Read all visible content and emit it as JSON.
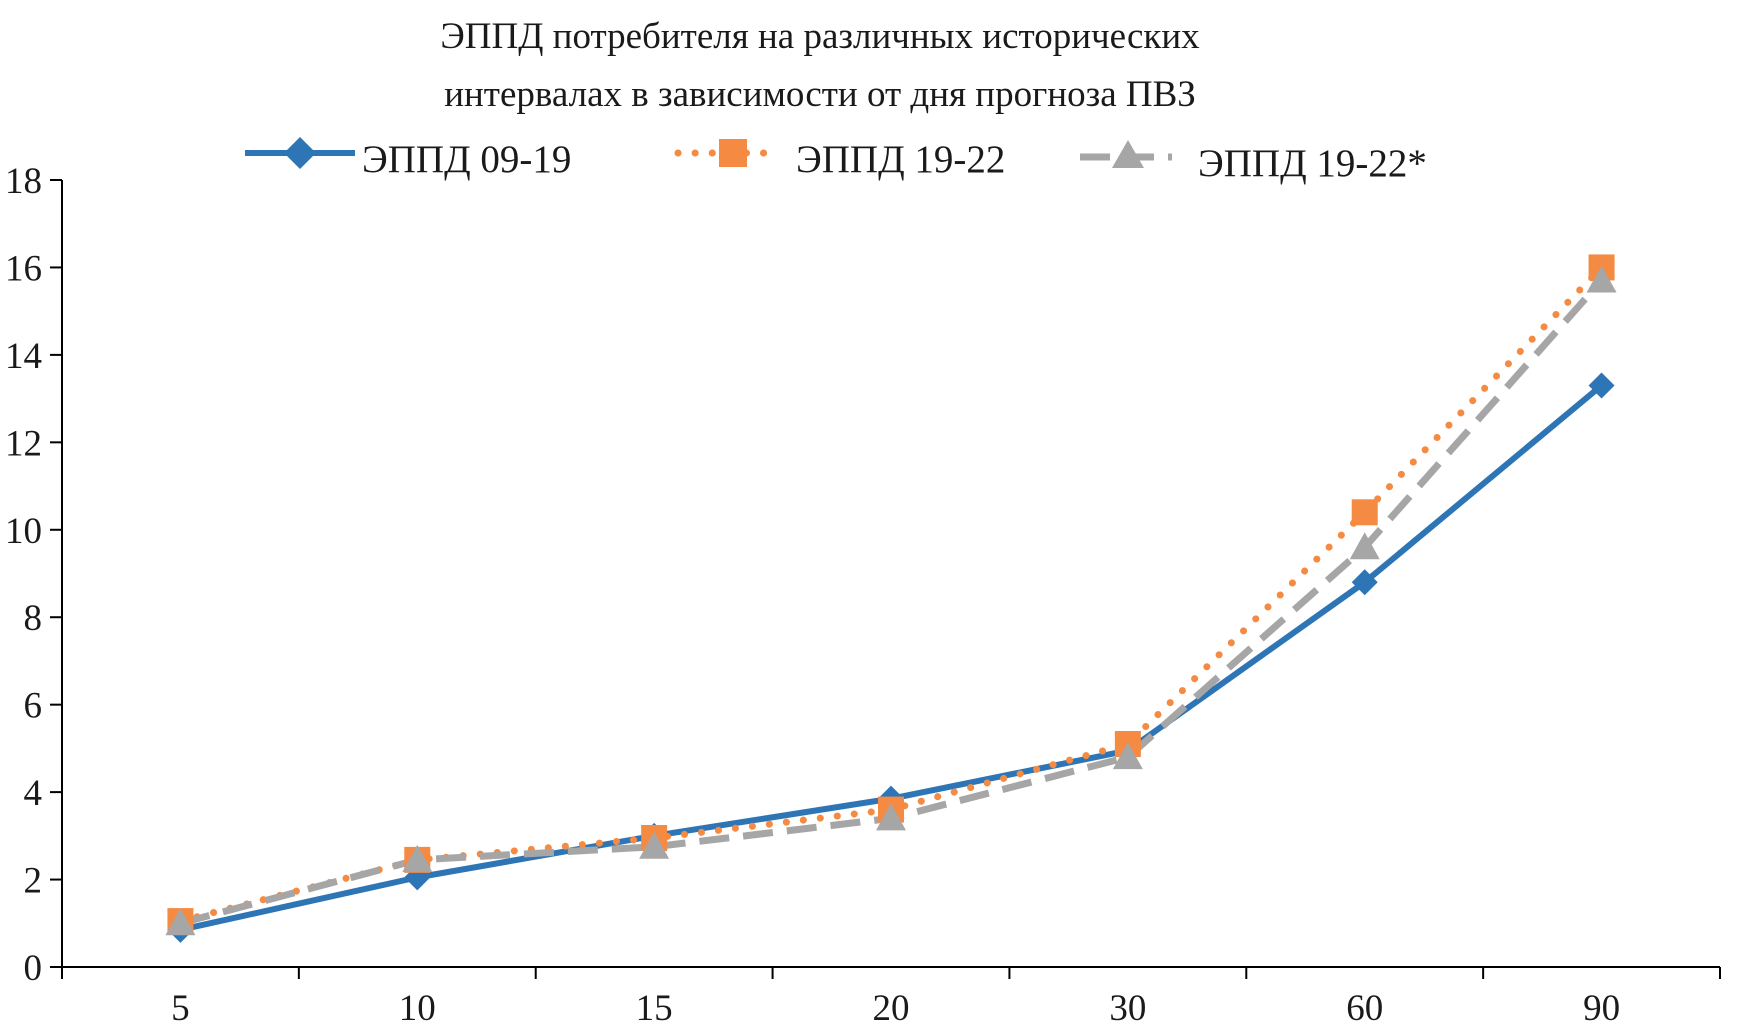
{
  "chart_data": {
    "type": "line",
    "title_lines": [
      "ЭППД потребителя на различных исторических",
      "интервалах в зависимости от дня прогноза ПВЗ"
    ],
    "xlabel": "",
    "ylabel": "",
    "categories": [
      "5",
      "10",
      "15",
      "20",
      "30",
      "60",
      "90"
    ],
    "ylim": [
      0,
      18
    ],
    "yticks": [
      "0",
      "2",
      "4",
      "6",
      "8",
      "10",
      "12",
      "14",
      "16",
      "18"
    ],
    "grid": false,
    "legend_position": "top",
    "series": [
      {
        "name": "ЭППД 09-19",
        "values": [
          0.85,
          2.05,
          3.0,
          3.85,
          4.95,
          8.8,
          13.3
        ],
        "color": "#2e75b6",
        "line_style": "solid",
        "marker": "diamond"
      },
      {
        "name": "ЭППД 19-22",
        "values": [
          1.05,
          2.45,
          2.95,
          3.6,
          5.1,
          10.4,
          16.0
        ],
        "color": "#f58a42",
        "line_style": "dotted",
        "marker": "square"
      },
      {
        "name": "ЭППД 19-22*",
        "values": [
          1.0,
          2.45,
          2.75,
          3.4,
          4.8,
          9.6,
          15.7
        ],
        "color": "#a6a6a6",
        "line_style": "dashed",
        "marker": "triangle"
      }
    ]
  }
}
